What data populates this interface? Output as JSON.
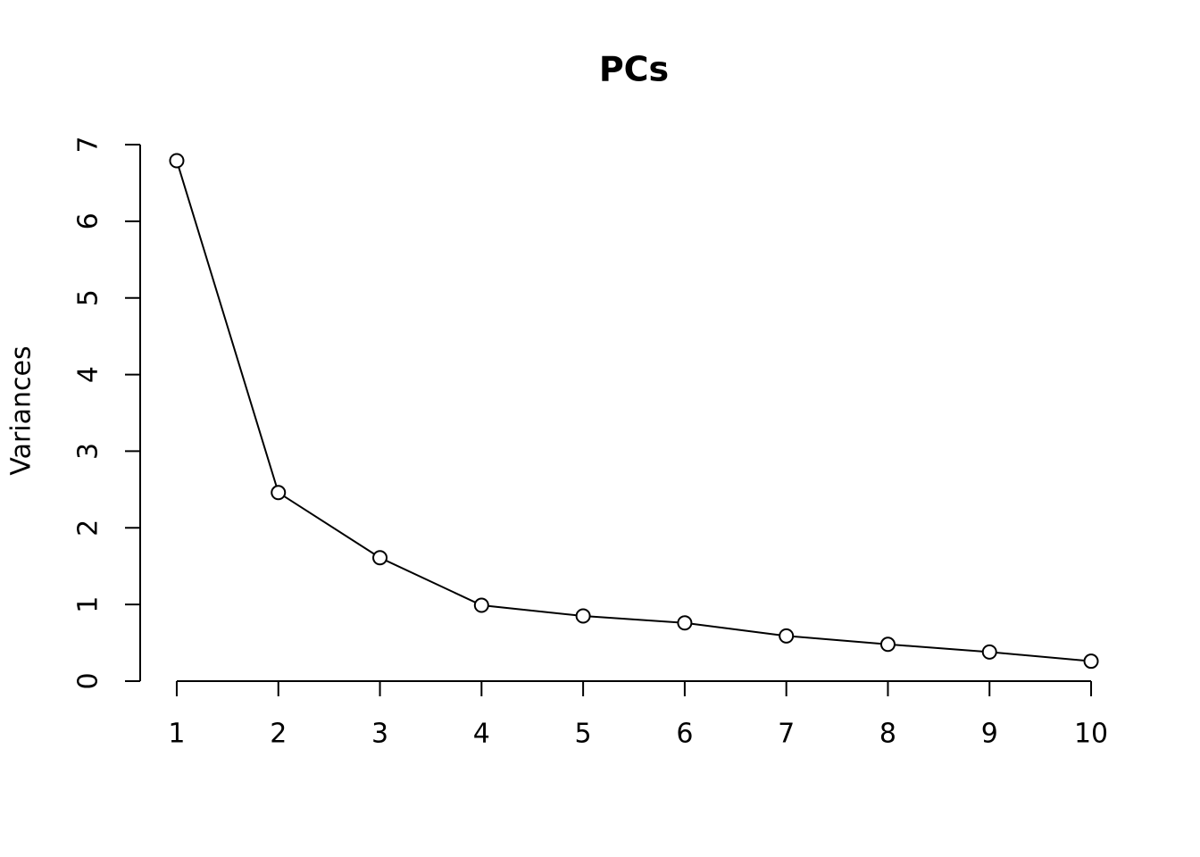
{
  "chart_data": {
    "type": "line",
    "title": "PCs",
    "y_label": "Variances",
    "x": [
      1,
      2,
      3,
      4,
      5,
      6,
      7,
      8,
      9,
      10
    ],
    "values": [
      6.79,
      2.46,
      1.61,
      0.99,
      0.85,
      0.76,
      0.59,
      0.48,
      0.38,
      0.26
    ],
    "color": "#000000",
    "xlim": [
      0.64,
      10.36
    ],
    "xticks": [
      1,
      2,
      3,
      4,
      5,
      6,
      7,
      8,
      9,
      10
    ],
    "ylim": [
      0,
      7
    ],
    "yticks": [
      0,
      1,
      2,
      3,
      4,
      5,
      6,
      7
    ],
    "grid": false
  }
}
